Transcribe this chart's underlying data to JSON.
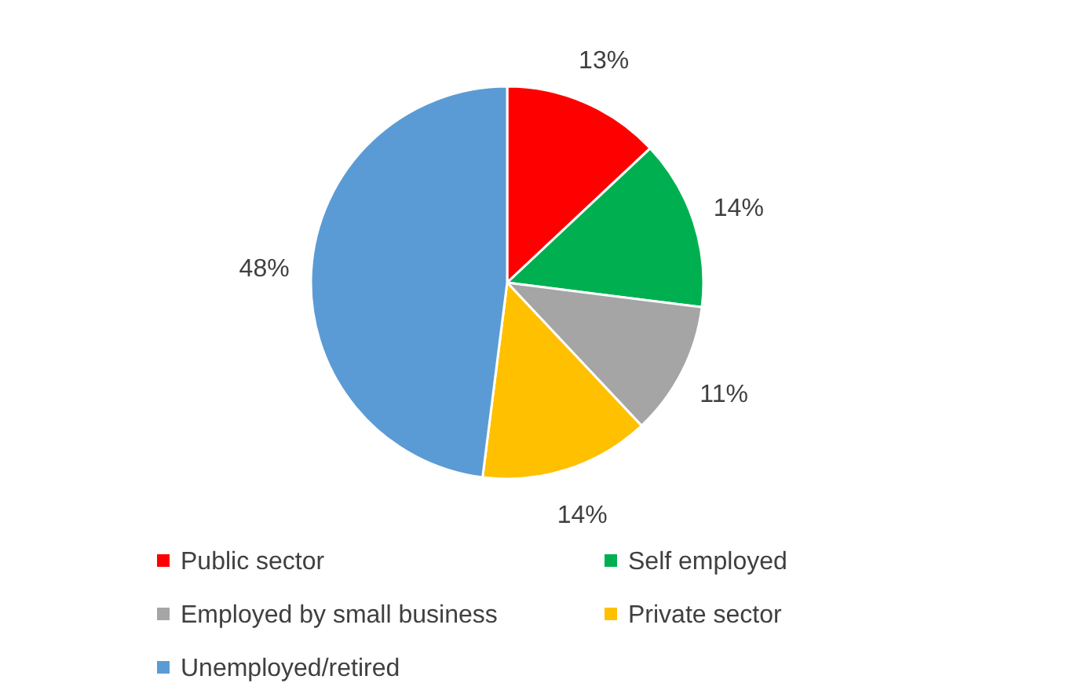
{
  "chart_data": {
    "type": "pie",
    "categories": [
      "Public sector",
      "Self employed",
      "Employed by small business",
      "Private sector",
      "Unemployed/retired"
    ],
    "values": [
      13,
      14,
      11,
      14,
      48
    ],
    "colors": [
      "#ff0000",
      "#00b050",
      "#a5a5a5",
      "#ffc000",
      "#5b9bd5"
    ],
    "value_labels": [
      "13%",
      "14%",
      "11%",
      "14%",
      "48%"
    ],
    "legend": "bottom"
  }
}
